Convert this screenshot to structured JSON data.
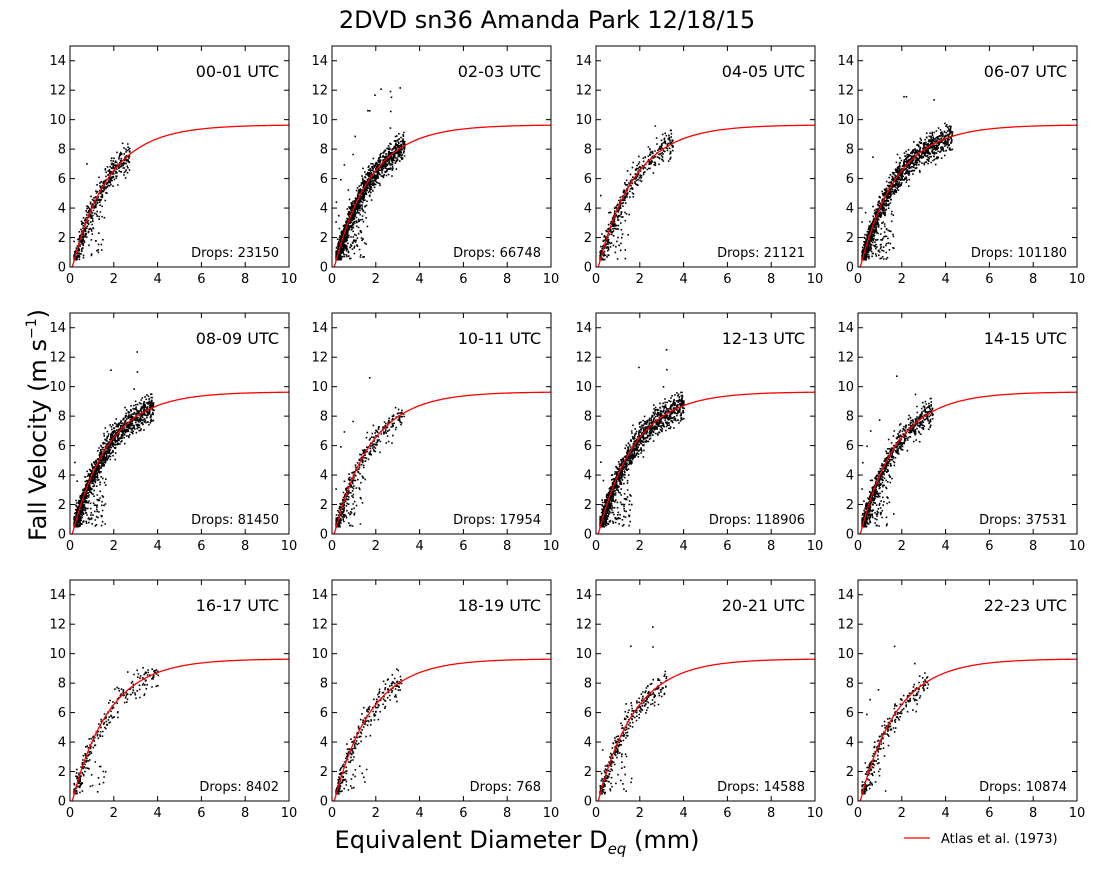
{
  "figure": {
    "title": "2DVD sn36 Amanda Park 12/18/15",
    "xlabel_main": "Equivalent Diameter D",
    "xlabel_sub": "eq",
    "xlabel_unit": " (mm)",
    "ylabel_main": "Fall Velocity (m s",
    "ylabel_sup": "−1",
    "ylabel_close": ")",
    "legend_label": "Atlas et al. (1973)",
    "curve_color": "#ff0000",
    "point_color": "#000000"
  },
  "chart_data": {
    "type": "scatter",
    "xlim": [
      0,
      10
    ],
    "ylim": [
      0,
      15
    ],
    "xticks": [
      0,
      2,
      4,
      6,
      8,
      10
    ],
    "yticks": [
      0,
      2,
      4,
      6,
      8,
      10,
      12,
      14
    ],
    "grid": false,
    "legend_placement": "bottom-right",
    "fit_curve": {
      "name": "Atlas et al. (1973)",
      "formula": "v = 9.65 - 10.3*exp(-0.6*D)"
    },
    "panels": [
      {
        "title": "00-01 UTC",
        "drops_label": "Drops: 23150",
        "drops": 23150,
        "max_d": 2.7
      },
      {
        "title": "02-03 UTC",
        "drops_label": "Drops: 66748",
        "drops": 66748,
        "max_d": 3.3
      },
      {
        "title": "04-05 UTC",
        "drops_label": "Drops: 21121",
        "drops": 21121,
        "max_d": 3.5
      },
      {
        "title": "06-07 UTC",
        "drops_label": "Drops: 101180",
        "drops": 101180,
        "max_d": 4.3
      },
      {
        "title": "08-09 UTC",
        "drops_label": "Drops: 81450",
        "drops": 81450,
        "max_d": 3.8
      },
      {
        "title": "10-11 UTC",
        "drops_label": "Drops: 17954",
        "drops": 17954,
        "max_d": 3.3
      },
      {
        "title": "12-13 UTC",
        "drops_label": "Drops: 118906",
        "drops": 118906,
        "max_d": 4.0
      },
      {
        "title": "14-15 UTC",
        "drops_label": "Drops: 37531",
        "drops": 37531,
        "max_d": 3.4
      },
      {
        "title": "16-17 UTC",
        "drops_label": "Drops: 8402",
        "drops": 8402,
        "max_d": 4.0
      },
      {
        "title": "18-19 UTC",
        "drops_label": "Drops: 768",
        "drops": 768,
        "max_d": 3.2
      },
      {
        "title": "20-21 UTC",
        "drops_label": "Drops: 14588",
        "drops": 14588,
        "max_d": 3.2
      },
      {
        "title": "22-23 UTC",
        "drops_label": "Drops: 10874",
        "drops": 10874,
        "max_d": 3.2
      }
    ]
  }
}
